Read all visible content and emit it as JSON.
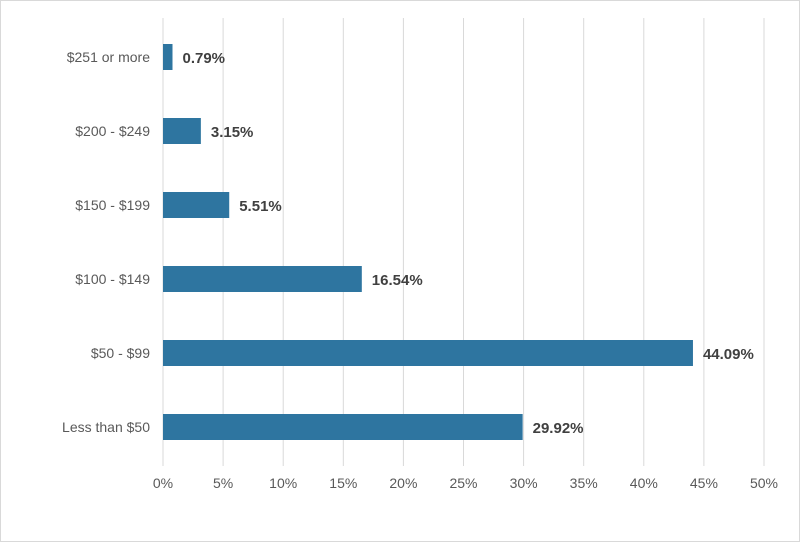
{
  "chart_data": {
    "type": "bar",
    "orientation": "horizontal",
    "categories": [
      "$251 or more",
      "$200 - $249",
      "$150 - $199",
      "$100 - $149",
      "$50 - $99",
      "Less than $50"
    ],
    "values": [
      0.79,
      3.15,
      5.51,
      16.54,
      44.09,
      29.92
    ],
    "data_labels": [
      "0.79%",
      "3.15%",
      "5.51%",
      "16.54%",
      "44.09%",
      "29.92%"
    ],
    "x_ticks": [
      "0%",
      "5%",
      "10%",
      "15%",
      "20%",
      "25%",
      "30%",
      "35%",
      "40%",
      "45%",
      "50%"
    ],
    "xlim": [
      0,
      50
    ],
    "grid": "vertical",
    "legend": "none",
    "bar_color": "#2e75a0",
    "title": "",
    "xlabel": "",
    "ylabel": ""
  }
}
